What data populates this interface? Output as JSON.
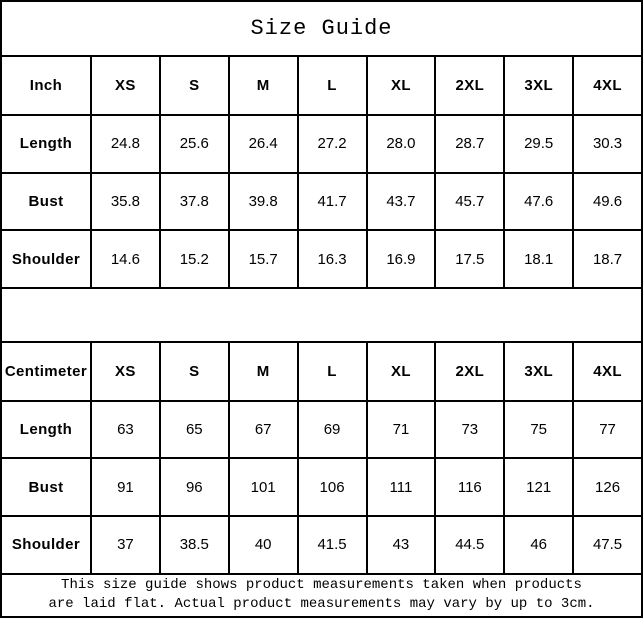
{
  "title": "Size Guide",
  "chart_data": [
    {
      "type": "table",
      "name": "inch",
      "unit": "Inch",
      "columns": [
        "Inch",
        "XS",
        "S",
        "M",
        "L",
        "XL",
        "2XL",
        "3XL",
        "4XL"
      ],
      "rows": [
        {
          "label": "Length",
          "values": [
            "24.8",
            "25.6",
            "26.4",
            "27.2",
            "28.0",
            "28.7",
            "29.5",
            "30.3"
          ]
        },
        {
          "label": "Bust",
          "values": [
            "35.8",
            "37.8",
            "39.8",
            "41.7",
            "43.7",
            "45.7",
            "47.6",
            "49.6"
          ]
        },
        {
          "label": "Shoulder",
          "values": [
            "14.6",
            "15.2",
            "15.7",
            "16.3",
            "16.9",
            "17.5",
            "18.1",
            "18.7"
          ]
        }
      ]
    },
    {
      "type": "table",
      "name": "centimeter",
      "unit": "Centimeter",
      "columns": [
        "Centimeter",
        "XS",
        "S",
        "M",
        "L",
        "XL",
        "2XL",
        "3XL",
        "4XL"
      ],
      "rows": [
        {
          "label": "Length",
          "values": [
            "63",
            "65",
            "67",
            "69",
            "71",
            "73",
            "75",
            "77"
          ]
        },
        {
          "label": "Bust",
          "values": [
            "91",
            "96",
            "101",
            "106",
            "111",
            "116",
            "121",
            "126"
          ]
        },
        {
          "label": "Shoulder",
          "values": [
            "37",
            "38.5",
            "40",
            "41.5",
            "43",
            "44.5",
            "46",
            "47.5"
          ]
        }
      ]
    }
  ],
  "footnote": {
    "lines": [
      "This size guide shows product measurements taken when products",
      "are laid flat. Actual product measurements may vary by up to 3cm."
    ]
  },
  "colors": {
    "background": "#ffffff",
    "border": "#000000",
    "text": "#000000"
  }
}
